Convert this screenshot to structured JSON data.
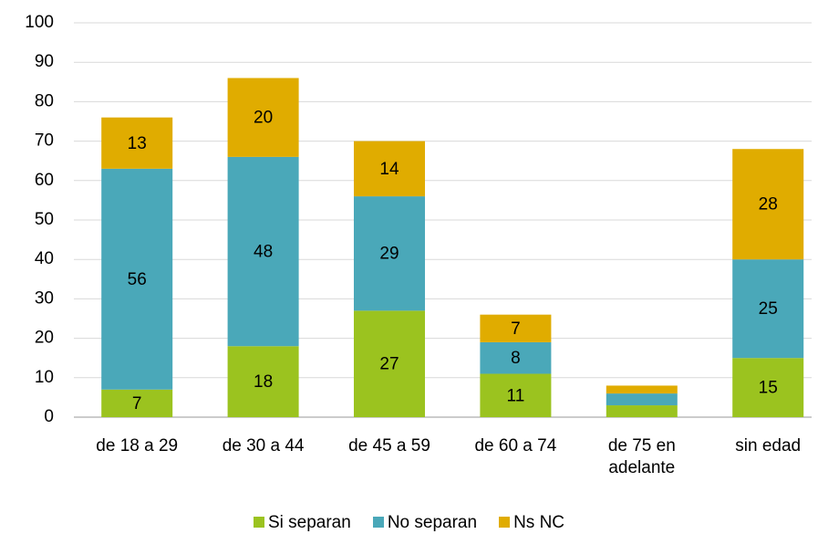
{
  "chart_data": {
    "type": "stacked_bar",
    "categories": [
      "de 18 a 29",
      "de 30 a 44",
      "de 45 a 59",
      "de 60 a 74",
      "de 75 en adelante",
      "sin edad"
    ],
    "series": [
      {
        "name": "Si separan",
        "color": "#9bc31f",
        "values": [
          7,
          18,
          27,
          11,
          3,
          15
        ]
      },
      {
        "name": "No separan",
        "color": "#4aa8b9",
        "values": [
          56,
          48,
          29,
          8,
          3,
          25
        ]
      },
      {
        "name": "Ns NC",
        "color": "#e0ac00",
        "values": [
          13,
          20,
          14,
          7,
          2,
          28
        ]
      }
    ],
    "ylim": [
      0,
      100
    ],
    "yticks": [
      0,
      10,
      20,
      30,
      40,
      50,
      60,
      70,
      80,
      90,
      100
    ],
    "grid": true,
    "legend": "bottom"
  }
}
